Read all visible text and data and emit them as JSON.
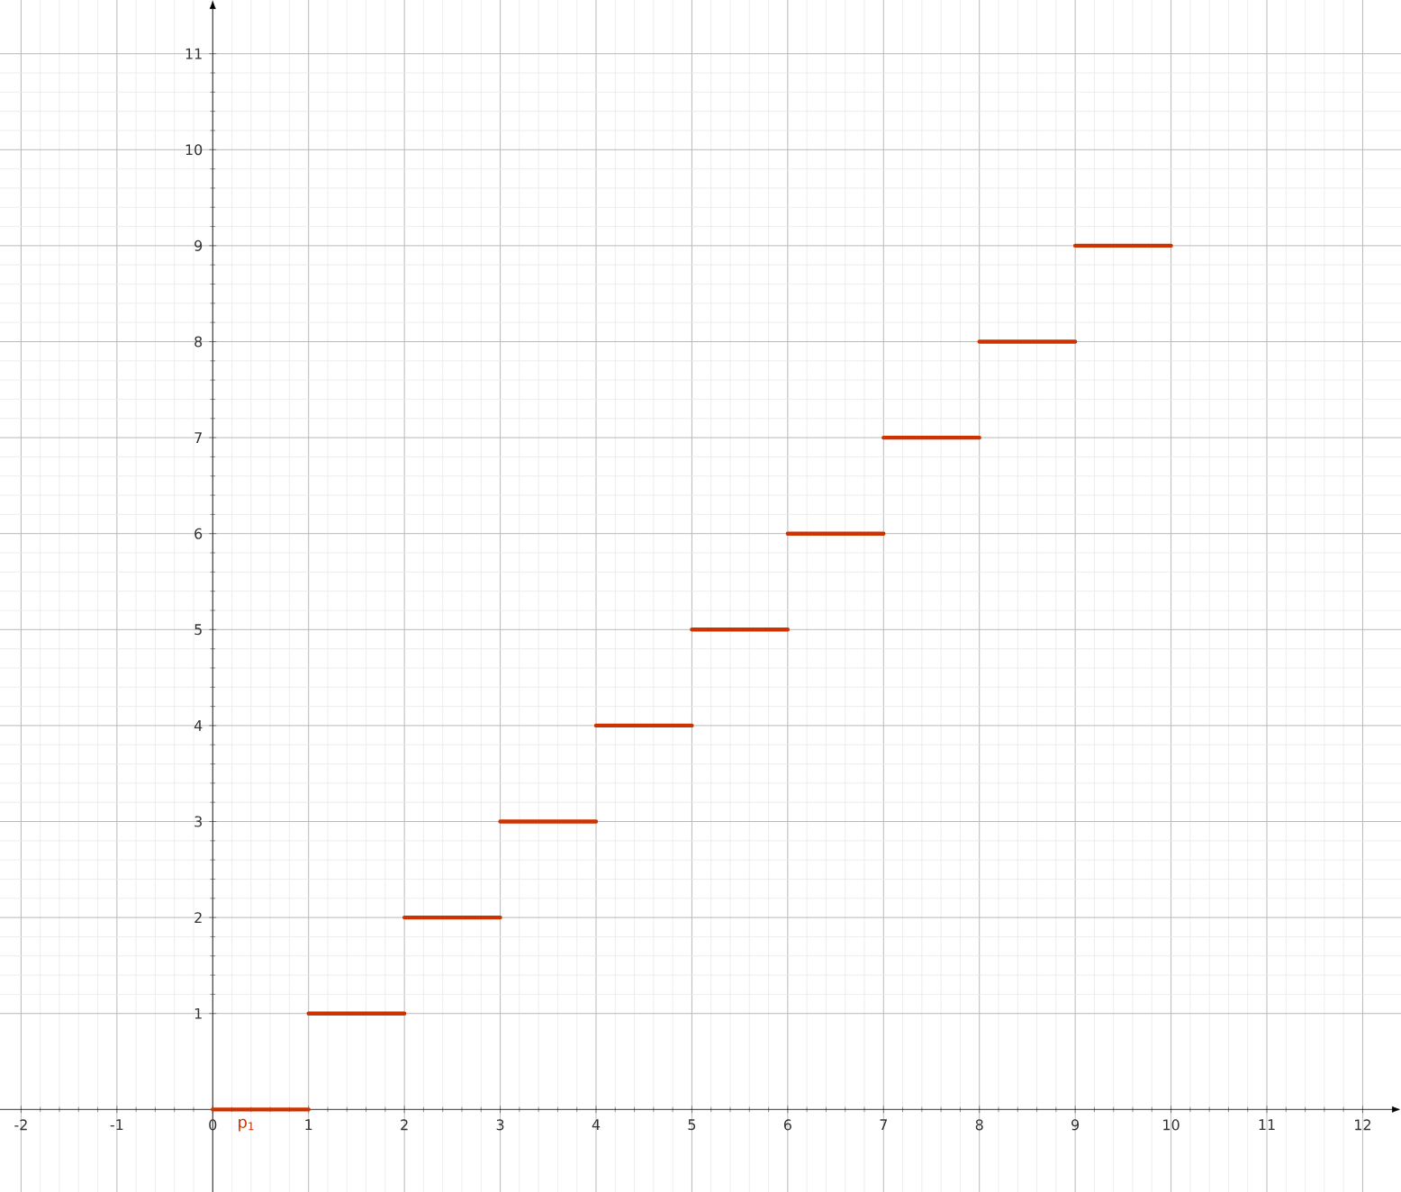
{
  "chart_data": {
    "type": "step",
    "x": [
      0,
      1,
      2,
      3,
      4,
      5,
      6,
      7,
      8,
      9,
      10
    ],
    "series": [
      {
        "name": "p$_{1}$",
        "color": "#cc3300",
        "values": [
          0,
          1,
          2,
          3,
          4,
          5,
          6,
          7,
          8,
          9,
          9
        ]
      }
    ],
    "xlim": [
      -2.22,
      12.4
    ],
    "ylim": [
      -0.86,
      11.56
    ],
    "xticks": [
      -2,
      -1,
      0,
      1,
      2,
      3,
      4,
      5,
      6,
      7,
      8,
      9,
      10,
      11,
      12
    ],
    "yticks": [
      1,
      2,
      3,
      4,
      5,
      6,
      7,
      8,
      9,
      10,
      11
    ],
    "grid": true,
    "line_style": "solid"
  }
}
